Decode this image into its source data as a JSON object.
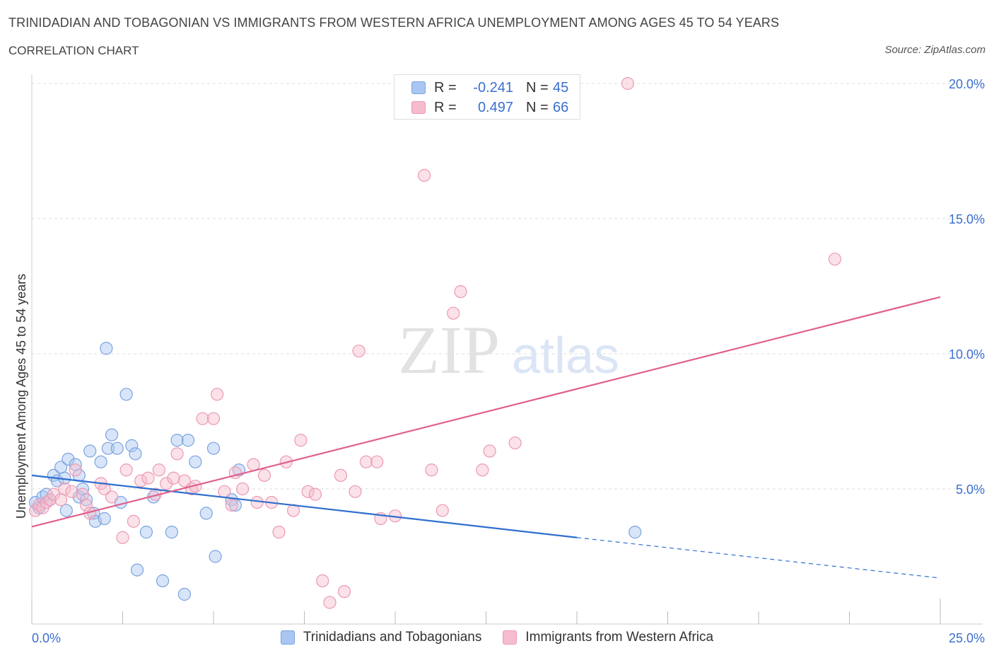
{
  "title": "TRINIDADIAN AND TOBAGONIAN VS IMMIGRANTS FROM WESTERN AFRICA UNEMPLOYMENT AMONG AGES 45 TO 54 YEARS",
  "subtitle": "CORRELATION CHART",
  "source": "Source: ZipAtlas.com",
  "watermark": {
    "zip": "ZIP",
    "atlas": "atlas"
  },
  "colors": {
    "blue_fill": "#a9c5f2",
    "blue_stroke": "#7aa3e0",
    "blue_line": "#2f6fcf",
    "pink_fill": "#f6bccd",
    "pink_stroke": "#ec9ab3",
    "pink_line": "#e0608c",
    "axis_label": "#3a6fd0",
    "grid": "#dcdcdc"
  },
  "legend": {
    "series1": {
      "r_label": "R =",
      "r_value": "-0.241",
      "n_label": "N =",
      "n_value": "45"
    },
    "series2": {
      "r_label": "R =",
      "r_value": "0.497",
      "n_label": "N =",
      "n_value": "66"
    }
  },
  "bottom_legend": [
    "Trinidadians and Tobagonians",
    "Immigrants from Western Africa"
  ],
  "chart_data": {
    "type": "scatter",
    "ylabel": "Unemployment Among Ages 45 to 54 years",
    "xlim": [
      0,
      25
    ],
    "ylim": [
      0,
      20
    ],
    "x_tick_labels": [
      {
        "value": 0,
        "label": "0.0%"
      },
      {
        "value": 25,
        "label": "25.0%"
      }
    ],
    "x_minor_ticks": [
      0,
      2.5,
      5,
      7.5,
      10,
      12.5,
      15,
      17.5,
      20,
      22.5,
      25
    ],
    "y_ticks": [
      {
        "value": 5,
        "label": "5.0%"
      },
      {
        "value": 10,
        "label": "10.0%"
      },
      {
        "value": 15,
        "label": "15.0%"
      },
      {
        "value": 20,
        "label": "20.0%"
      }
    ],
    "series": [
      {
        "name": "Trinidadians and Tobagonians",
        "color": "blue",
        "points": [
          [
            0.1,
            4.5
          ],
          [
            0.2,
            4.3
          ],
          [
            0.3,
            4.7
          ],
          [
            0.4,
            4.8
          ],
          [
            0.5,
            4.6
          ],
          [
            0.6,
            5.5
          ],
          [
            0.7,
            5.3
          ],
          [
            0.8,
            5.8
          ],
          [
            0.9,
            5.4
          ],
          [
            0.95,
            4.2
          ],
          [
            1.0,
            6.1
          ],
          [
            1.2,
            5.9
          ],
          [
            1.3,
            4.7
          ],
          [
            1.3,
            5.5
          ],
          [
            1.4,
            5.0
          ],
          [
            1.5,
            4.6
          ],
          [
            1.6,
            6.4
          ],
          [
            1.7,
            4.1
          ],
          [
            1.75,
            3.8
          ],
          [
            1.9,
            6.0
          ],
          [
            2.0,
            3.9
          ],
          [
            2.05,
            10.2
          ],
          [
            2.1,
            6.5
          ],
          [
            2.2,
            7.0
          ],
          [
            2.35,
            6.5
          ],
          [
            2.45,
            4.5
          ],
          [
            2.6,
            8.5
          ],
          [
            2.75,
            6.6
          ],
          [
            2.85,
            6.3
          ],
          [
            2.9,
            2.0
          ],
          [
            3.15,
            3.4
          ],
          [
            3.35,
            4.7
          ],
          [
            3.6,
            1.6
          ],
          [
            3.85,
            3.4
          ],
          [
            4.0,
            6.8
          ],
          [
            4.2,
            1.1
          ],
          [
            4.3,
            6.8
          ],
          [
            4.5,
            6.0
          ],
          [
            4.8,
            4.1
          ],
          [
            5.0,
            6.5
          ],
          [
            5.05,
            2.5
          ],
          [
            5.5,
            4.6
          ],
          [
            5.6,
            4.4
          ],
          [
            5.7,
            5.7
          ],
          [
            16.6,
            3.4
          ]
        ]
      },
      {
        "name": "Immigrants from Western Africa",
        "color": "pink",
        "points": [
          [
            0.1,
            4.2
          ],
          [
            0.2,
            4.4
          ],
          [
            0.3,
            4.3
          ],
          [
            0.4,
            4.5
          ],
          [
            0.5,
            4.6
          ],
          [
            0.6,
            4.8
          ],
          [
            0.8,
            4.6
          ],
          [
            0.9,
            5.0
          ],
          [
            1.1,
            4.9
          ],
          [
            1.2,
            5.7
          ],
          [
            1.4,
            4.8
          ],
          [
            1.5,
            4.4
          ],
          [
            1.6,
            4.1
          ],
          [
            1.9,
            5.2
          ],
          [
            2.0,
            5.0
          ],
          [
            2.2,
            4.7
          ],
          [
            2.5,
            3.2
          ],
          [
            2.6,
            5.7
          ],
          [
            2.8,
            3.8
          ],
          [
            3.0,
            5.3
          ],
          [
            3.2,
            5.4
          ],
          [
            3.4,
            4.8
          ],
          [
            3.5,
            5.7
          ],
          [
            3.7,
            5.2
          ],
          [
            3.9,
            5.4
          ],
          [
            4.0,
            6.3
          ],
          [
            4.2,
            5.3
          ],
          [
            4.4,
            5.0
          ],
          [
            4.5,
            5.1
          ],
          [
            4.7,
            7.6
          ],
          [
            5.0,
            7.6
          ],
          [
            5.1,
            8.5
          ],
          [
            5.3,
            4.9
          ],
          [
            5.5,
            4.4
          ],
          [
            5.6,
            5.6
          ],
          [
            5.8,
            5.0
          ],
          [
            6.1,
            5.9
          ],
          [
            6.2,
            4.5
          ],
          [
            6.4,
            5.5
          ],
          [
            6.6,
            4.5
          ],
          [
            6.8,
            3.4
          ],
          [
            7.0,
            6.0
          ],
          [
            7.2,
            4.2
          ],
          [
            7.4,
            6.8
          ],
          [
            7.6,
            4.9
          ],
          [
            7.8,
            4.8
          ],
          [
            8.0,
            1.6
          ],
          [
            8.2,
            0.8
          ],
          [
            8.5,
            5.5
          ],
          [
            8.6,
            1.2
          ],
          [
            8.9,
            4.9
          ],
          [
            9.0,
            10.1
          ],
          [
            9.2,
            6.0
          ],
          [
            9.5,
            6.0
          ],
          [
            9.6,
            3.9
          ],
          [
            10.0,
            4.0
          ],
          [
            10.8,
            16.6
          ],
          [
            11.0,
            5.7
          ],
          [
            11.3,
            4.2
          ],
          [
            11.6,
            11.5
          ],
          [
            11.8,
            12.3
          ],
          [
            12.4,
            5.7
          ],
          [
            12.6,
            6.4
          ],
          [
            13.3,
            6.7
          ],
          [
            16.4,
            20.0
          ],
          [
            22.1,
            13.5
          ]
        ]
      }
    ],
    "trendlines": [
      {
        "series": "Trinidadians and Tobagonians",
        "x": [
          0,
          15
        ],
        "y": [
          5.5,
          3.2
        ],
        "dashed_to": [
          25,
          1.7
        ]
      },
      {
        "series": "Immigrants from Western Africa",
        "x": [
          0,
          25
        ],
        "y": [
          3.6,
          12.1
        ]
      }
    ]
  }
}
